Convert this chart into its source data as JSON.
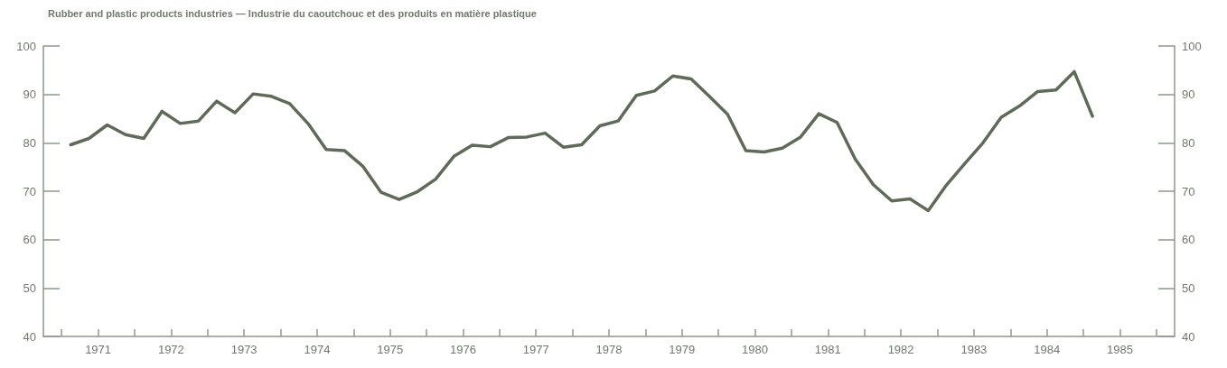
{
  "chart_data": {
    "type": "line",
    "title": "Rubber and plastic products industries — Industrie du caoutchouc et des produits en matière plastique",
    "x": [
      1971.125,
      1971.375,
      1971.625,
      1971.875,
      1972.125,
      1972.375,
      1972.625,
      1972.875,
      1973.125,
      1973.375,
      1973.625,
      1973.875,
      1974.125,
      1974.375,
      1974.625,
      1974.875,
      1975.125,
      1975.375,
      1975.625,
      1975.875,
      1976.125,
      1976.375,
      1976.625,
      1976.875,
      1977.125,
      1977.375,
      1977.625,
      1977.875,
      1978.125,
      1978.375,
      1978.625,
      1978.875,
      1979.125,
      1979.375,
      1979.625,
      1979.875,
      1980.125,
      1980.375,
      1980.625,
      1980.875,
      1981.125,
      1981.375,
      1981.625,
      1981.875,
      1982.125,
      1982.375,
      1982.625,
      1982.875,
      1983.125,
      1983.375,
      1983.625,
      1983.875,
      1984.125,
      1984.375,
      1984.625,
      1984.875,
      1985.125
    ],
    "series": [
      {
        "color": "#5f6a58",
        "values": [
          79.6,
          80.9,
          83.7,
          81.7,
          80.9,
          86.5,
          84.0,
          84.5,
          88.6,
          86.2,
          90.1,
          89.6,
          88.1,
          84.0,
          78.6,
          78.4,
          75.2,
          69.8,
          68.3,
          69.9,
          72.5,
          77.2,
          79.5,
          79.2,
          81.1,
          81.2,
          82.0,
          79.1,
          79.6,
          83.5,
          84.5,
          89.8,
          90.7,
          93.8,
          93.2,
          89.6,
          85.9,
          78.4,
          78.1,
          78.9,
          81.2,
          86.0,
          84.2,
          76.6,
          71.3,
          68.0,
          68.4,
          66.0,
          71.3,
          75.7,
          80.0,
          85.3,
          87.6,
          90.6,
          90.9,
          94.7,
          85.5
        ]
      }
    ],
    "xlim": [
      1970.75,
      1986.25
    ],
    "xticks": [
      {
        "value": 1971,
        "label": null
      },
      {
        "value": 1971.5,
        "label": "1971"
      },
      {
        "value": 1972,
        "label": null
      },
      {
        "value": 1972.5,
        "label": "1972"
      },
      {
        "value": 1973,
        "label": null
      },
      {
        "value": 1973.5,
        "label": "1973"
      },
      {
        "value": 1974,
        "label": null
      },
      {
        "value": 1974.5,
        "label": "1974"
      },
      {
        "value": 1975,
        "label": null
      },
      {
        "value": 1975.5,
        "label": "1975"
      },
      {
        "value": 1976,
        "label": null
      },
      {
        "value": 1976.5,
        "label": "1976"
      },
      {
        "value": 1977,
        "label": null
      },
      {
        "value": 1977.5,
        "label": "1977"
      },
      {
        "value": 1978,
        "label": null
      },
      {
        "value": 1978.5,
        "label": "1978"
      },
      {
        "value": 1979,
        "label": null
      },
      {
        "value": 1979.5,
        "label": "1979"
      },
      {
        "value": 1980,
        "label": null
      },
      {
        "value": 1980.5,
        "label": "1980"
      },
      {
        "value": 1981,
        "label": null
      },
      {
        "value": 1981.5,
        "label": "1981"
      },
      {
        "value": 1982,
        "label": null
      },
      {
        "value": 1982.5,
        "label": "1982"
      },
      {
        "value": 1983,
        "label": null
      },
      {
        "value": 1983.5,
        "label": "1983"
      },
      {
        "value": 1984,
        "label": null
      },
      {
        "value": 1984.5,
        "label": "1984"
      },
      {
        "value": 1985,
        "label": null
      },
      {
        "value": 1985.5,
        "label": "1985"
      },
      {
        "value": 1986,
        "label": null
      }
    ],
    "ylim": [
      40,
      100
    ],
    "yticks": [
      40,
      50,
      60,
      70,
      80,
      90,
      100
    ],
    "y2lim": [
      40,
      100
    ],
    "y2ticks": [
      40,
      50,
      60,
      70,
      80,
      90,
      100
    ],
    "grid": false,
    "marker": "none",
    "line_style": "solid"
  }
}
